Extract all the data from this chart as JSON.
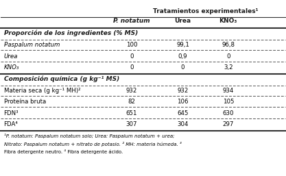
{
  "title_header": "Tratamientos experimentales¹",
  "col_headers": [
    "",
    "P. notatum",
    "Urea",
    "KNO₃"
  ],
  "section1_header": "Proporción de los ingredientes (% MS)",
  "section1_rows": [
    [
      "Paspalum notatum",
      "100",
      "99,1",
      "96,8"
    ],
    [
      "Urea",
      "0",
      "0,9",
      "0"
    ],
    [
      "KNO₃",
      "0",
      "0",
      "3,2"
    ]
  ],
  "section2_header": "Composición química (g kg⁻¹ MS)",
  "section2_rows": [
    [
      "Materia seca (g kg⁻¹ MH)²",
      "932",
      "932",
      "934"
    ],
    [
      "Proteína bruta",
      "82",
      "106",
      "105"
    ],
    [
      "FDN³",
      "651",
      "645",
      "630"
    ],
    [
      "FDA⁴",
      "307",
      "304",
      "297"
    ]
  ],
  "footnote": "¹P. notatum: Paspalum notatum solo; Urea: Paspalum notatum + urea;\nNitrato: Paspalum notatum + nitrato de potasio. ² MH: materia húmeda. ³\nFibra detergente neutro. ⁴ Fibra detergente ácido.",
  "bg_color": "#ffffff",
  "text_color": "#000000",
  "header_color": "#1a1a1a"
}
